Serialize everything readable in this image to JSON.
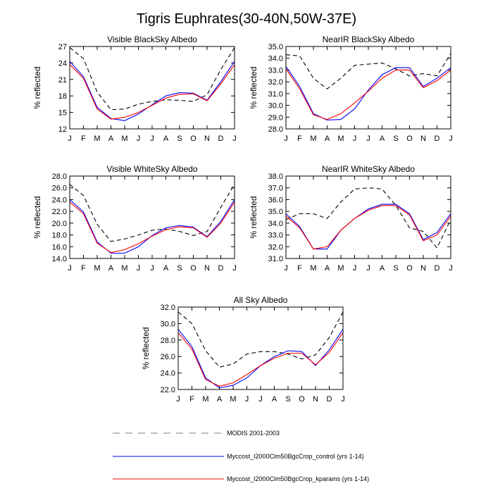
{
  "title": "Tigris Euphrates(30-40N,50W-37E)",
  "legend": [
    {
      "label": "MODIS 2001-2003",
      "color": "#000000",
      "dash": "dashed"
    },
    {
      "label": "Myccost_I2000Clm50BgcCrop_control (yrs 1-14)",
      "color": "#0000ff",
      "dash": "solid"
    },
    {
      "label": "Myccost_I2000Clm50BgcCrop_kparams (yrs 1-14)",
      "color": "#ff0000",
      "dash": "solid"
    }
  ],
  "chart_data": [
    {
      "type": "line",
      "title": "Visible BlackSky Albedo",
      "ylabel": "% reflected",
      "xlabel": "",
      "categories": [
        "J",
        "F",
        "M",
        "A",
        "M",
        "J",
        "J",
        "A",
        "S",
        "O",
        "N",
        "D",
        "J"
      ],
      "ylim": [
        12,
        27
      ],
      "yticks": [
        12,
        15,
        18,
        21,
        24,
        27
      ],
      "ytick_labels": [
        "12",
        "15",
        "18",
        "21",
        "24",
        "27"
      ],
      "series": [
        {
          "name": "MODIS 2001-2003",
          "values": [
            26.8,
            24.8,
            18.7,
            15.5,
            15.6,
            16.5,
            17.0,
            17.3,
            17.2,
            17.0,
            18.2,
            22.8,
            26.8
          ]
        },
        {
          "name": "Myccost_I2000Clm50BgcCrop_control (yrs 1-14)",
          "values": [
            24.3,
            21.5,
            15.9,
            13.9,
            13.5,
            14.7,
            16.4,
            18.0,
            18.6,
            18.5,
            17.2,
            20.6,
            24.3
          ]
        },
        {
          "name": "Myccost_I2000Clm50BgcCrop_kparams (yrs 1-14)",
          "values": [
            23.7,
            21.2,
            15.6,
            13.8,
            14.1,
            15.0,
            16.3,
            17.6,
            18.3,
            18.4,
            17.1,
            20.2,
            23.7
          ]
        }
      ]
    },
    {
      "type": "line",
      "title": "NearIR BlackSky Albedo",
      "ylabel": "% reflected",
      "xlabel": "",
      "categories": [
        "J",
        "F",
        "M",
        "A",
        "M",
        "J",
        "J",
        "A",
        "S",
        "O",
        "N",
        "D",
        "J"
      ],
      "ylim": [
        28,
        35
      ],
      "yticks": [
        28,
        29,
        30,
        31,
        32,
        33,
        34,
        35
      ],
      "ytick_labels": [
        "28.0",
        "29.0",
        "30.0",
        "31.0",
        "32.0",
        "33.0",
        "34.0",
        "35.0"
      ],
      "series": [
        {
          "name": "MODIS 2001-2003",
          "values": [
            34.3,
            34.2,
            32.3,
            31.4,
            32.3,
            33.4,
            33.5,
            33.6,
            33.1,
            32.5,
            32.7,
            32.5,
            34.4
          ]
        },
        {
          "name": "Myccost_I2000Clm50BgcCrop_control (yrs 1-14)",
          "values": [
            33.3,
            31.6,
            29.3,
            28.75,
            28.8,
            29.7,
            31.3,
            32.6,
            33.2,
            33.2,
            31.6,
            32.3,
            33.2
          ]
        },
        {
          "name": "Myccost_I2000Clm50BgcCrop_kparams (yrs 1-14)",
          "values": [
            33.1,
            31.4,
            29.2,
            28.8,
            29.3,
            30.2,
            31.2,
            32.3,
            33.0,
            33.0,
            31.5,
            32.1,
            33.0
          ]
        }
      ]
    },
    {
      "type": "line",
      "title": "Visible WhiteSky Albedo",
      "ylabel": "% reflected",
      "xlabel": "",
      "categories": [
        "J",
        "F",
        "M",
        "A",
        "M",
        "J",
        "J",
        "A",
        "S",
        "O",
        "N",
        "D",
        "J"
      ],
      "ylim": [
        14,
        28
      ],
      "yticks": [
        14,
        16,
        18,
        20,
        22,
        24,
        26,
        28
      ],
      "ytick_labels": [
        "14.0",
        "16.0",
        "18.0",
        "20.0",
        "22.0",
        "24.0",
        "26.0",
        "28.0"
      ],
      "series": [
        {
          "name": "MODIS 2001-2003",
          "values": [
            26.6,
            24.7,
            19.8,
            16.9,
            17.3,
            18.0,
            18.8,
            19.0,
            18.6,
            17.9,
            18.6,
            22.7,
            26.6
          ]
        },
        {
          "name": "Myccost_I2000Clm50BgcCrop_control (yrs 1-14)",
          "values": [
            24.0,
            21.9,
            16.8,
            14.9,
            14.9,
            16.0,
            17.9,
            19.2,
            19.6,
            19.3,
            17.7,
            20.3,
            24.0
          ]
        },
        {
          "name": "Myccost_I2000Clm50BgcCrop_kparams (yrs 1-14)",
          "values": [
            23.6,
            21.6,
            16.6,
            15.0,
            15.5,
            16.5,
            17.8,
            18.9,
            19.4,
            19.2,
            17.6,
            20.0,
            23.6
          ]
        }
      ]
    },
    {
      "type": "line",
      "title": "NearIR WhiteSky Albedo",
      "ylabel": "% reflected",
      "xlabel": "",
      "categories": [
        "J",
        "F",
        "M",
        "A",
        "M",
        "J",
        "J",
        "A",
        "S",
        "O",
        "N",
        "D",
        "J"
      ],
      "ylim": [
        31,
        38
      ],
      "yticks": [
        31,
        32,
        33,
        34,
        35,
        36,
        37,
        38
      ],
      "ytick_labels": [
        "31.0",
        "32.0",
        "33.0",
        "34.0",
        "35.0",
        "36.0",
        "37.0",
        "38.0"
      ],
      "series": [
        {
          "name": "MODIS 2001-2003",
          "values": [
            34.3,
            34.8,
            34.8,
            34.4,
            35.8,
            36.9,
            37.0,
            36.9,
            35.5,
            33.6,
            33.3,
            31.9,
            34.3
          ]
        },
        {
          "name": "Myccost_I2000Clm50BgcCrop_control (yrs 1-14)",
          "values": [
            34.8,
            33.7,
            31.8,
            31.8,
            33.4,
            34.4,
            35.2,
            35.6,
            35.6,
            34.8,
            32.6,
            33.2,
            34.8
          ]
        },
        {
          "name": "Myccost_I2000Clm50BgcCrop_kparams (yrs 1-14)",
          "values": [
            34.6,
            33.6,
            31.8,
            32.0,
            33.4,
            34.4,
            35.1,
            35.5,
            35.5,
            34.7,
            32.5,
            33.0,
            34.6
          ]
        }
      ]
    },
    {
      "type": "line",
      "title": "All Sky Albedo",
      "ylabel": "% reflected",
      "xlabel": "",
      "categories": [
        "J",
        "F",
        "M",
        "A",
        "M",
        "J",
        "J",
        "A",
        "S",
        "O",
        "N",
        "D",
        "J"
      ],
      "ylim": [
        22,
        32
      ],
      "yticks": [
        22,
        24,
        26,
        28,
        30,
        32
      ],
      "ytick_labels": [
        "22.0",
        "24.0",
        "26.0",
        "28.0",
        "30.0",
        "32.0"
      ],
      "series": [
        {
          "name": "MODIS 2001-2003",
          "values": [
            31.4,
            30.0,
            26.7,
            24.7,
            25.1,
            26.3,
            26.6,
            26.6,
            26.3,
            25.7,
            26.2,
            28.3,
            31.4
          ]
        },
        {
          "name": "Myccost_I2000Clm50BgcCrop_control (yrs 1-14)",
          "values": [
            29.3,
            27.2,
            23.4,
            22.2,
            22.5,
            23.4,
            24.9,
            26.0,
            26.7,
            26.6,
            24.9,
            26.8,
            29.3
          ]
        },
        {
          "name": "Myccost_I2000Clm50BgcCrop_kparams (yrs 1-14)",
          "values": [
            28.9,
            26.9,
            23.2,
            22.4,
            22.8,
            23.8,
            24.9,
            25.8,
            26.4,
            26.4,
            25.0,
            26.5,
            28.9
          ]
        }
      ]
    }
  ]
}
